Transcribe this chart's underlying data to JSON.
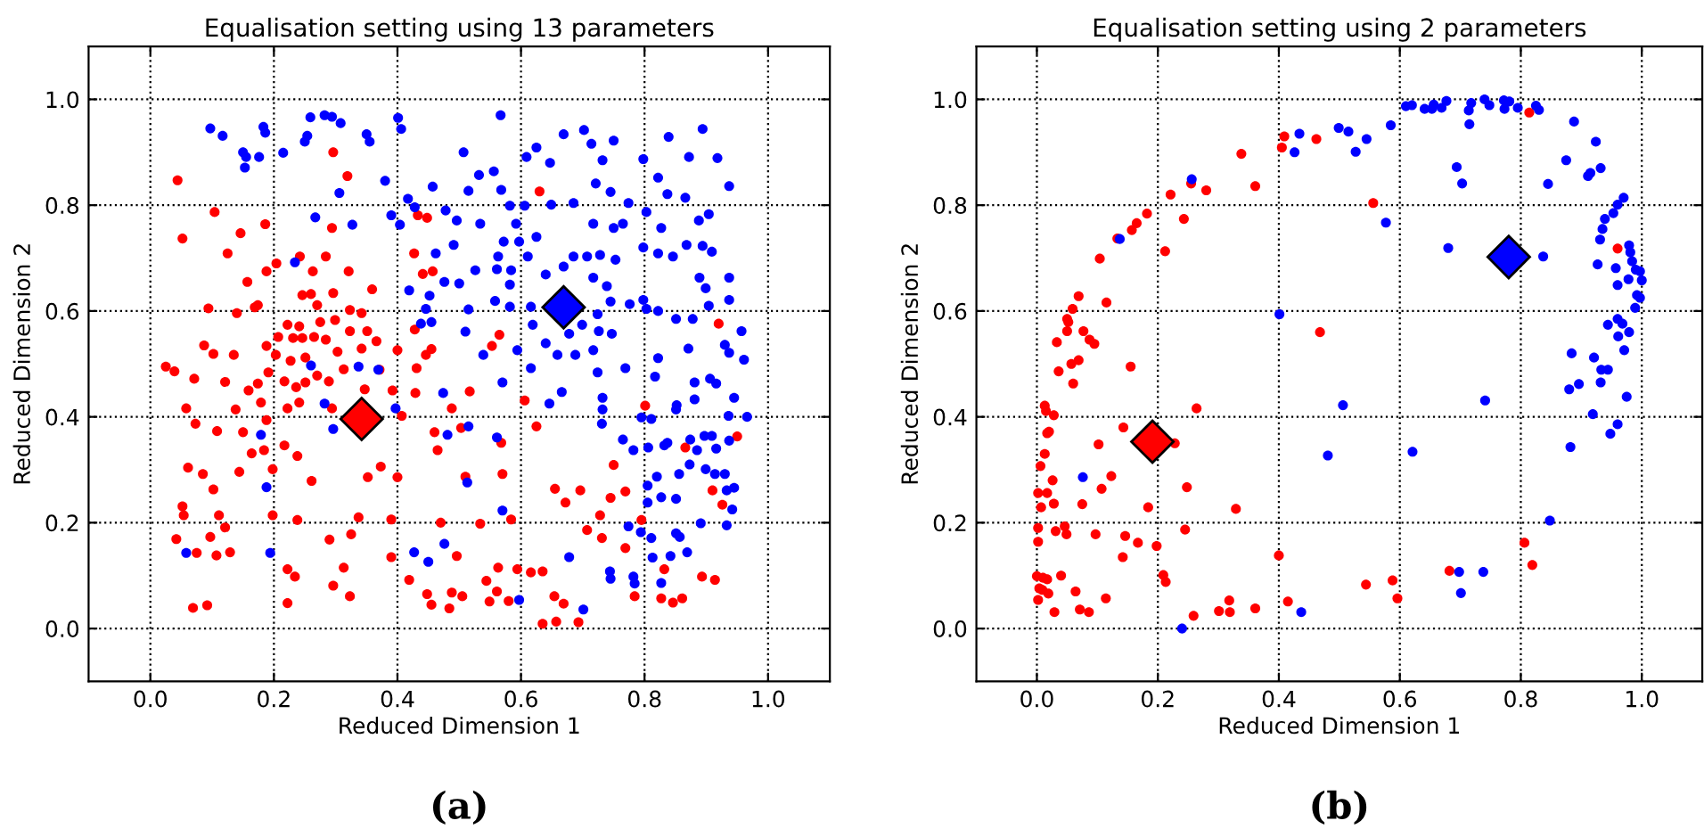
{
  "chart_data": [
    {
      "type": "scatter",
      "title": "Equalisation setting using 13 parameters",
      "xlabel": "Reduced Dimension 1",
      "ylabel": "Reduced Dimension 2",
      "xlim": [
        -0.1,
        1.1
      ],
      "ylim": [
        -0.1,
        1.1
      ],
      "xticks": [
        {
          "value": 0,
          "label": "0.0"
        },
        {
          "value": 0.2,
          "label": "0.2"
        },
        {
          "value": 0.4,
          "label": "0.4"
        },
        {
          "value": 0.6,
          "label": "0.6"
        },
        {
          "value": 0.8,
          "label": "0.8"
        },
        {
          "value": 1,
          "label": "1.0"
        }
      ],
      "yticks": [
        {
          "value": 0,
          "label": "0.0"
        },
        {
          "value": 0.2,
          "label": "0.2"
        },
        {
          "value": 0.4,
          "label": "0.4"
        },
        {
          "value": 0.6,
          "label": "0.6"
        },
        {
          "value": 0.8,
          "label": "0.8"
        },
        {
          "value": 1,
          "label": "1.0"
        }
      ],
      "grid": true,
      "annotations": [
        "(a)"
      ],
      "series": [
        {
          "color": "#ff0000",
          "marker": "circle",
          "x": [
            0.044,
            0.104,
            0.052,
            0.296,
            0.319,
            0.186,
            0.146,
            0.125,
            0.294,
            0.284,
            0.242,
            0.157,
            0.094,
            0.14,
            0.174,
            0.025,
            0.039,
            0.087,
            0.102,
            0.071,
            0.121,
            0.058,
            0.073,
            0.108,
            0.15,
            0.138,
            0.188,
            0.164,
            0.184,
            0.217,
            0.238,
            0.061,
            0.085,
            0.144,
            0.198,
            0.261,
            0.102,
            0.052,
            0.054,
            0.111,
            0.121,
            0.097,
            0.042,
            0.075,
            0.107,
            0.129,
            0.069,
            0.092,
            0.198,
            0.238,
            0.222,
            0.234,
            0.222,
            0.29,
            0.296,
            0.323,
            0.313,
            0.325,
            0.337,
            0.352,
            0.373,
            0.4,
            0.39,
            0.39,
            0.419,
            0.448,
            0.455,
            0.484,
            0.505,
            0.488,
            0.47,
            0.496,
            0.534,
            0.584,
            0.544,
            0.563,
            0.561,
            0.549,
            0.58,
            0.594,
            0.616,
            0.635,
            0.635,
            0.657,
            0.669,
            0.693,
            0.654,
            0.655,
            0.672,
            0.696,
            0.707,
            0.728,
            0.731,
            0.745,
            0.75,
            0.769,
            0.769,
            0.795,
            0.784,
            0.827,
            0.846,
            0.861,
            0.832,
            0.893,
            0.914,
            0.91,
            0.926,
            0.95,
            0.866,
            0.801,
            0.92,
            0.625,
            0.606,
            0.568,
            0.57,
            0.51,
            0.503,
            0.517,
            0.488,
            0.46,
            0.465,
            0.429,
            0.407,
            0.4,
            0.446,
            0.455,
            0.431,
            0.428,
            0.427,
            0.441,
            0.457,
            0.433,
            0.448,
            0.553,
            0.565,
            0.63,
            0.246,
            0.26,
            0.27,
            0.296,
            0.323,
            0.342,
            0.299,
            0.323,
            0.351,
            0.366,
            0.342,
            0.303,
            0.246,
            0.231,
            0.207,
            0.188,
            0.203,
            0.227,
            0.251,
            0.265,
            0.284,
            0.191,
            0.217,
            0.236,
            0.251,
            0.27,
            0.289,
            0.222,
            0.241,
            0.275,
            0.359,
            0.321,
            0.263,
            0.188,
            0.204,
            0.169,
            0.241,
            0.222,
            0.294,
            0.313,
            0.347,
            0.371,
            0.392,
            0.135,
            0.159,
            0.174,
            0.179
          ],
          "values": [
            0.847,
            0.787,
            0.737,
            0.9,
            0.855,
            0.764,
            0.747,
            0.709,
            0.757,
            0.703,
            0.703,
            0.655,
            0.605,
            0.596,
            0.611,
            0.495,
            0.486,
            0.535,
            0.519,
            0.472,
            0.466,
            0.416,
            0.387,
            0.373,
            0.371,
            0.414,
            0.394,
            0.331,
            0.337,
            0.346,
            0.326,
            0.304,
            0.292,
            0.296,
            0.301,
            0.279,
            0.263,
            0.231,
            0.214,
            0.214,
            0.191,
            0.173,
            0.169,
            0.143,
            0.138,
            0.144,
            0.039,
            0.044,
            0.214,
            0.205,
            0.112,
            0.098,
            0.048,
            0.168,
            0.081,
            0.061,
            0.115,
            0.178,
            0.21,
            0.286,
            0.306,
            0.286,
            0.206,
            0.135,
            0.092,
            0.065,
            0.045,
            0.038,
            0.061,
            0.068,
            0.2,
            0.137,
            0.198,
            0.206,
            0.09,
            0.115,
            0.07,
            0.051,
            0.052,
            0.112,
            0.106,
            0.108,
            0.009,
            0.013,
            0.047,
            0.012,
            0.061,
            0.264,
            0.238,
            0.261,
            0.186,
            0.214,
            0.171,
            0.247,
            0.309,
            0.259,
            0.152,
            0.205,
            0.061,
            0.057,
            0.049,
            0.057,
            0.112,
            0.098,
            0.092,
            0.261,
            0.234,
            0.363,
            0.342,
            0.421,
            0.576,
            0.382,
            0.431,
            0.351,
            0.292,
            0.287,
            0.379,
            0.448,
            0.416,
            0.371,
            0.337,
            0.445,
            0.402,
            0.526,
            0.517,
            0.528,
            0.492,
            0.565,
            0.709,
            0.67,
            0.675,
            0.781,
            0.776,
            0.534,
            0.555,
            0.826,
            0.63,
            0.632,
            0.611,
            0.634,
            0.602,
            0.596,
            0.583,
            0.562,
            0.562,
            0.543,
            0.529,
            0.523,
            0.549,
            0.549,
            0.551,
            0.534,
            0.517,
            0.506,
            0.512,
            0.551,
            0.546,
            0.484,
            0.467,
            0.456,
            0.465,
            0.478,
            0.467,
            0.574,
            0.571,
            0.579,
            0.641,
            0.675,
            0.675,
            0.675,
            0.69,
            0.607,
            0.427,
            0.416,
            0.416,
            0.49,
            0.452,
            0.489,
            0.45,
            0.517,
            0.45,
            0.463,
            0.427
          ]
        },
        {
          "color": "#0000ff",
          "marker": "circle",
          "x": [
            0.097,
            0.117,
            0.183,
            0.186,
            0.15,
            0.155,
            0.153,
            0.176,
            0.215,
            0.254,
            0.25,
            0.259,
            0.282,
            0.294,
            0.308,
            0.35,
            0.355,
            0.401,
            0.406,
            0.38,
            0.306,
            0.267,
            0.327,
            0.417,
            0.39,
            0.404,
            0.428,
            0.457,
            0.462,
            0.491,
            0.478,
            0.496,
            0.507,
            0.532,
            0.515,
            0.556,
            0.567,
            0.568,
            0.582,
            0.609,
            0.625,
            0.647,
            0.669,
            0.702,
            0.714,
            0.75,
            0.732,
            0.798,
            0.839,
            0.894,
            0.918,
            0.872,
            0.937,
            0.822,
            0.837,
            0.866,
            0.904,
            0.888,
            0.827,
            0.803,
            0.774,
            0.721,
            0.745,
            0.685,
            0.649,
            0.606,
            0.592,
            0.572,
            0.597,
            0.625,
            0.611,
            0.563,
            0.534,
            0.526,
            0.5,
            0.476,
            0.419,
            0.452,
            0.438,
            0.455,
            0.446,
            0.515,
            0.51,
            0.539,
            0.558,
            0.582,
            0.582,
            0.584,
            0.561,
            0.616,
            0.64,
            0.669,
            0.685,
            0.707,
            0.728,
            0.753,
            0.717,
            0.739,
            0.717,
            0.75,
            0.765,
            0.798,
            0.822,
            0.846,
            0.868,
            0.894,
            0.909,
            0.889,
            0.899,
            0.937,
            0.937,
            0.798,
            0.776,
            0.745,
            0.724,
            0.699,
            0.678,
            0.726,
            0.747,
            0.803,
            0.822,
            0.851,
            0.878,
            0.904,
            0.957,
            0.93,
            0.937,
            0.961,
            0.871,
            0.822,
            0.769,
            0.717,
            0.688,
            0.659,
            0.64,
            0.619,
            0.594,
            0.616,
            0.57,
            0.724,
            0.817,
            0.881,
            0.906,
            0.916,
            0.945,
            0.881,
            0.852,
            0.732,
            0.732,
            0.731,
            0.666,
            0.646,
            0.474,
            0.515,
            0.481,
            0.561,
            0.397,
            0.369,
            0.337,
            0.936,
            0.966,
            0.795,
            0.811,
            0.851,
            0.765,
            0.782,
            0.806,
            0.832,
            0.837,
            0.874,
            0.897,
            0.909,
            0.937,
            0.916,
            0.885,
            0.873,
            0.899,
            0.914,
            0.93,
            0.945,
            0.933,
            0.856,
            0.82,
            0.805,
            0.805,
            0.827,
            0.851,
            0.942,
            0.933,
            0.891,
            0.851,
            0.857,
            0.811,
            0.794,
            0.774,
            0.813,
            0.842,
            0.869,
            0.744,
            0.745,
            0.782,
            0.784,
            0.827,
            0.678,
            0.701,
            0.597,
            0.57,
            0.476,
            0.427,
            0.45,
            0.513,
            0.296,
            0.282,
            0.179,
            0.188,
            0.058,
            0.194,
            0.26,
            0.234
          ],
          "values": [
            0.945,
            0.931,
            0.948,
            0.937,
            0.9,
            0.891,
            0.871,
            0.891,
            0.899,
            0.931,
            0.92,
            0.966,
            0.97,
            0.967,
            0.955,
            0.934,
            0.92,
            0.965,
            0.944,
            0.846,
            0.823,
            0.777,
            0.763,
            0.812,
            0.781,
            0.763,
            0.796,
            0.835,
            0.709,
            0.725,
            0.79,
            0.771,
            0.9,
            0.857,
            0.827,
            0.864,
            0.97,
            0.829,
            0.799,
            0.891,
            0.909,
            0.88,
            0.934,
            0.942,
            0.916,
            0.922,
            0.885,
            0.887,
            0.929,
            0.944,
            0.889,
            0.891,
            0.836,
            0.852,
            0.821,
            0.814,
            0.783,
            0.771,
            0.757,
            0.787,
            0.804,
            0.841,
            0.825,
            0.804,
            0.801,
            0.799,
            0.765,
            0.731,
            0.731,
            0.74,
            0.703,
            0.703,
            0.765,
            0.677,
            0.652,
            0.655,
            0.639,
            0.629,
            0.576,
            0.579,
            0.604,
            0.603,
            0.561,
            0.517,
            0.619,
            0.608,
            0.65,
            0.677,
            0.679,
            0.608,
            0.669,
            0.684,
            0.703,
            0.703,
            0.706,
            0.697,
            0.663,
            0.647,
            0.765,
            0.757,
            0.765,
            0.72,
            0.709,
            0.703,
            0.725,
            0.723,
            0.712,
            0.663,
            0.643,
            0.663,
            0.621,
            0.621,
            0.613,
            0.618,
            0.594,
            0.574,
            0.557,
            0.562,
            0.557,
            0.604,
            0.6,
            0.585,
            0.585,
            0.61,
            0.562,
            0.536,
            0.521,
            0.508,
            0.529,
            0.511,
            0.492,
            0.526,
            0.517,
            0.517,
            0.539,
            0.574,
            0.526,
            0.492,
            0.465,
            0.484,
            0.476,
            0.465,
            0.472,
            0.463,
            0.436,
            0.433,
            0.422,
            0.436,
            0.414,
            0.387,
            0.447,
            0.425,
            0.445,
            0.382,
            0.366,
            0.361,
            0.416,
            0.489,
            0.495,
            0.402,
            0.4,
            0.399,
            0.396,
            0.414,
            0.357,
            0.337,
            0.342,
            0.346,
            0.351,
            0.357,
            0.364,
            0.364,
            0.355,
            0.34,
            0.337,
            0.31,
            0.301,
            0.292,
            0.292,
            0.266,
            0.261,
            0.292,
            0.287,
            0.27,
            0.238,
            0.248,
            0.245,
            0.225,
            0.195,
            0.199,
            0.18,
            0.173,
            0.171,
            0.182,
            0.193,
            0.134,
            0.137,
            0.144,
            0.108,
            0.094,
            0.098,
            0.085,
            0.086,
            0.135,
            0.036,
            0.054,
            0.223,
            0.16,
            0.144,
            0.126,
            0.276,
            0.377,
            0.425,
            0.366,
            0.267,
            0.143,
            0.143,
            0.497,
            0.692
          ]
        },
        {
          "color": "#ff0000",
          "marker": "diamond",
          "x": [
            0.342
          ],
          "values": [
            0.396
          ]
        },
        {
          "color": "#0000ff",
          "marker": "diamond",
          "x": [
            0.669
          ],
          "values": [
            0.607
          ]
        }
      ]
    },
    {
      "type": "scatter",
      "title": "Equalisation setting using 2 parameters",
      "xlabel": "Reduced Dimension 1",
      "ylabel": "Reduced Dimension 2",
      "xlim": [
        -0.1,
        1.1
      ],
      "ylim": [
        -0.1,
        1.1
      ],
      "xticks": [
        {
          "value": 0,
          "label": "0.0"
        },
        {
          "value": 0.2,
          "label": "0.2"
        },
        {
          "value": 0.4,
          "label": "0.4"
        },
        {
          "value": 0.6,
          "label": "0.6"
        },
        {
          "value": 0.8,
          "label": "0.8"
        },
        {
          "value": 1,
          "label": "1.0"
        }
      ],
      "yticks": [
        {
          "value": 0,
          "label": "0.0"
        },
        {
          "value": 0.2,
          "label": "0.2"
        },
        {
          "value": 0.4,
          "label": "0.4"
        },
        {
          "value": 0.6,
          "label": "0.6"
        },
        {
          "value": 0.8,
          "label": "0.8"
        },
        {
          "value": 1,
          "label": "1.0"
        }
      ],
      "grid": true,
      "annotations": [
        "(b)"
      ],
      "series": [
        {
          "color": "#ff0000",
          "marker": "circle",
          "x": [
            0.814,
            0.409,
            0.405,
            0.462,
            0.338,
            0.361,
            0.255,
            0.28,
            0.221,
            0.556,
            0.182,
            0.165,
            0.157,
            0.133,
            0.243,
            0.212,
            0.104,
            0.96,
            0.069,
            0.115,
            0.059,
            0.05,
            0.052,
            0.05,
            0.077,
            0.087,
            0.095,
            0.033,
            0.069,
            0.057,
            0.036,
            0.155,
            0.06,
            0.468,
            0.013,
            0.015,
            0.028,
            0.264,
            0.02,
            0.017,
            0.143,
            0.228,
            0.102,
            0.013,
            0.006,
            0.026,
            0.123,
            0.002,
            0.017,
            0.107,
            0.248,
            0.028,
            0.007,
            0.075,
            0.184,
            0.329,
            0.002,
            0.046,
            0.049,
            0.031,
            0.097,
            0.146,
            0.167,
            0.245,
            0.198,
            0.002,
            0.142,
            0.4,
            0.806,
            0.819,
            0.0,
            0.01,
            0.017,
            0.04,
            0.209,
            0.213,
            0.682,
            0.004,
            0.009,
            0.019,
            0.064,
            0.002,
            0.029,
            0.071,
            0.086,
            0.114,
            0.259,
            0.301,
            0.318,
            0.319,
            0.361,
            0.415,
            0.544,
            0.588,
            0.596
          ],
          "values": [
            0.975,
            0.93,
            0.909,
            0.925,
            0.897,
            0.836,
            0.841,
            0.828,
            0.82,
            0.804,
            0.784,
            0.766,
            0.753,
            0.737,
            0.774,
            0.713,
            0.699,
            0.718,
            0.628,
            0.616,
            0.604,
            0.585,
            0.579,
            0.562,
            0.562,
            0.546,
            0.538,
            0.541,
            0.507,
            0.5,
            0.486,
            0.495,
            0.463,
            0.56,
            0.421,
            0.411,
            0.403,
            0.416,
            0.372,
            0.369,
            0.38,
            0.35,
            0.348,
            0.33,
            0.307,
            0.28,
            0.288,
            0.256,
            0.256,
            0.264,
            0.267,
            0.236,
            0.229,
            0.235,
            0.229,
            0.226,
            0.19,
            0.193,
            0.178,
            0.184,
            0.178,
            0.175,
            0.162,
            0.187,
            0.156,
            0.164,
            0.135,
            0.138,
            0.162,
            0.12,
            0.099,
            0.096,
            0.093,
            0.1,
            0.101,
            0.088,
            0.109,
            0.076,
            0.073,
            0.066,
            0.07,
            0.054,
            0.031,
            0.036,
            0.031,
            0.057,
            0.024,
            0.033,
            0.053,
            0.031,
            0.038,
            0.051,
            0.083,
            0.091,
            0.057
          ]
        },
        {
          "color": "#0000ff",
          "marker": "circle",
          "x": [
            0.61,
            0.62,
            0.641,
            0.653,
            0.656,
            0.669,
            0.677,
            0.714,
            0.718,
            0.74,
            0.748,
            0.772,
            0.773,
            0.781,
            0.795,
            0.825,
            0.83,
            0.715,
            0.585,
            0.499,
            0.515,
            0.434,
            0.426,
            0.527,
            0.545,
            0.694,
            0.703,
            0.577,
            0.256,
            0.137,
            0.68,
            0.837,
            0.888,
            0.924,
            0.875,
            0.932,
            0.911,
            0.915,
            0.845,
            0.97,
            0.96,
            0.953,
            0.939,
            0.935,
            0.931,
            0.979,
            0.981,
            0.984,
            0.99,
            0.997,
            1.0,
            0.978,
            0.957,
            0.927,
            0.96,
            0.992,
            0.997,
            0.989,
            0.944,
            0.96,
            0.968,
            0.979,
            0.961,
            0.971,
            0.884,
            0.921,
            0.933,
            0.944,
            0.896,
            0.932,
            0.88,
            0.975,
            0.919,
            0.96,
            0.948,
            0.882,
            0.741,
            0.848,
            0.401,
            0.506,
            0.481,
            0.621,
            0.076,
            0.698,
            0.738,
            0.701,
            0.437,
            0.24
          ],
          "values": [
            0.987,
            0.989,
            0.982,
            0.982,
            0.99,
            0.984,
            0.997,
            0.979,
            0.993,
            1.0,
            0.989,
            0.998,
            0.982,
            0.996,
            0.984,
            0.988,
            0.98,
            0.953,
            0.951,
            0.946,
            0.939,
            0.935,
            0.9,
            0.901,
            0.925,
            0.872,
            0.841,
            0.767,
            0.849,
            0.736,
            0.719,
            0.703,
            0.958,
            0.92,
            0.885,
            0.87,
            0.855,
            0.861,
            0.84,
            0.814,
            0.801,
            0.785,
            0.774,
            0.755,
            0.735,
            0.724,
            0.711,
            0.694,
            0.678,
            0.675,
            0.658,
            0.66,
            0.681,
            0.688,
            0.649,
            0.63,
            0.625,
            0.606,
            0.574,
            0.585,
            0.576,
            0.56,
            0.552,
            0.526,
            0.52,
            0.512,
            0.489,
            0.489,
            0.462,
            0.465,
            0.452,
            0.438,
            0.405,
            0.386,
            0.368,
            0.343,
            0.431,
            0.204,
            0.594,
            0.422,
            0.327,
            0.334,
            0.286,
            0.107,
            0.107,
            0.067,
            0.031,
            0.0
          ]
        },
        {
          "color": "#ff0000",
          "marker": "diamond",
          "x": [
            0.191
          ],
          "values": [
            0.353
          ]
        },
        {
          "color": "#0000ff",
          "marker": "diamond",
          "x": [
            0.78
          ],
          "values": [
            0.702
          ]
        }
      ]
    }
  ]
}
